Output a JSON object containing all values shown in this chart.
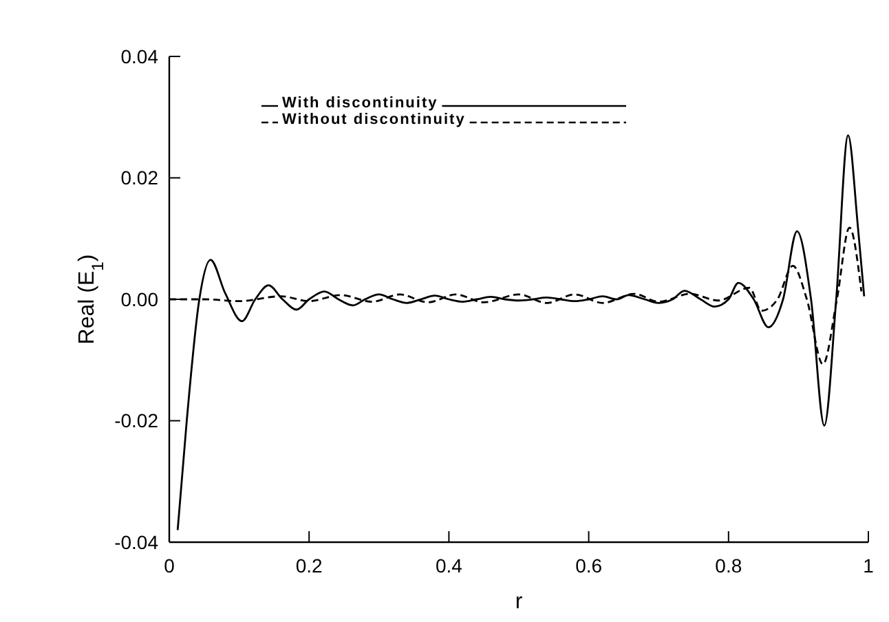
{
  "chart_data": {
    "type": "line",
    "xlabel": "r",
    "ylabel": "Real (E$_{1}$)",
    "xlim": [
      0,
      1
    ],
    "ylim": [
      -0.04,
      0.04
    ],
    "xticks": [
      0,
      0.2,
      0.4,
      0.6,
      0.8,
      1
    ],
    "yticks": [
      {
        "value": -0.04,
        "label": "-0.04"
      },
      {
        "value": -0.02,
        "label": "-0.02"
      },
      {
        "value": 0,
        "label": "0.00"
      },
      {
        "value": 0.02,
        "label": "0.02"
      },
      {
        "value": 0.04,
        "label": "0.04"
      }
    ],
    "legend": "top left",
    "grid": false,
    "series": [
      {
        "name": "With discontinuity",
        "color": "#000000",
        "line_style": "solid",
        "x": [
          0.012,
          0.025,
          0.043,
          0.059,
          0.08,
          0.104,
          0.123,
          0.142,
          0.162,
          0.182,
          0.2,
          0.222,
          0.242,
          0.263,
          0.28,
          0.3,
          0.32,
          0.34,
          0.36,
          0.38,
          0.4,
          0.42,
          0.44,
          0.46,
          0.48,
          0.5,
          0.52,
          0.54,
          0.56,
          0.58,
          0.6,
          0.62,
          0.64,
          0.657,
          0.68,
          0.7,
          0.72,
          0.737,
          0.76,
          0.78,
          0.8,
          0.814,
          0.836,
          0.857,
          0.878,
          0.898,
          0.918,
          0.937,
          0.954,
          0.971,
          0.985,
          0.994
        ],
        "values": [
          -0.038,
          -0.02,
          0,
          0.0065,
          0.001,
          -0.0036,
          0,
          0.0023,
          0,
          -0.0017,
          0,
          0.0013,
          0,
          -0.001,
          0,
          0.0008,
          0,
          -0.0006,
          0,
          0.0006,
          0,
          -0.0004,
          0,
          0.0004,
          0,
          -0.0002,
          0,
          0.0003,
          0,
          -0.0003,
          0,
          0.0005,
          0,
          0.0007,
          0,
          -0.0006,
          0,
          0.0014,
          0,
          -0.0012,
          0,
          0.0027,
          0,
          -0.0046,
          0,
          0.0112,
          0,
          -0.0208,
          0,
          0.027,
          0.012,
          0.0005
        ]
      },
      {
        "name": "Without discontinuity",
        "color": "#000000",
        "line_style": "dashed",
        "x": [
          0,
          0.05,
          0.1,
          0.16,
          0.2,
          0.245,
          0.29,
          0.33,
          0.37,
          0.41,
          0.45,
          0.5,
          0.54,
          0.58,
          0.62,
          0.665,
          0.7,
          0.745,
          0.785,
          0.83,
          0.847,
          0.87,
          0.892,
          0.912,
          0.935,
          0.955,
          0.973,
          0.99
        ],
        "values": [
          0,
          0,
          -0.0003,
          0.0005,
          -0.0003,
          0.0007,
          -0.0004,
          0.0008,
          -0.0005,
          0.0008,
          -0.0005,
          0.0008,
          -0.0006,
          0.0008,
          -0.0006,
          0.0009,
          -0.0004,
          0.0009,
          -0.0002,
          0.0019,
          -0.0019,
          0,
          0.0055,
          0,
          -0.0107,
          0,
          0.0118,
          0.0013
        ]
      }
    ]
  }
}
